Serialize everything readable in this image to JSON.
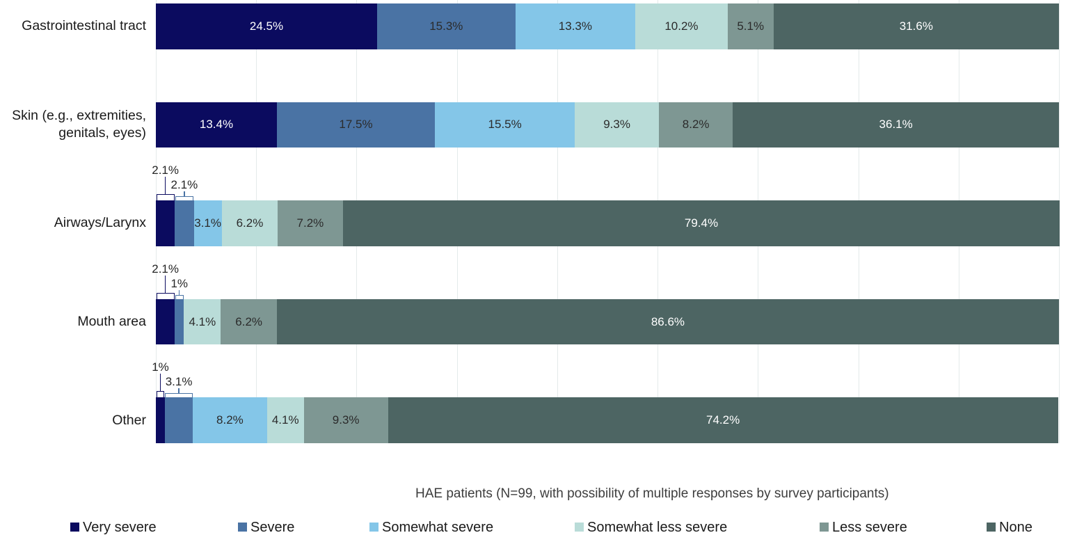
{
  "chart_data": {
    "type": "bar",
    "variant": "horizontal-stacked-100",
    "unit": "%",
    "title": "",
    "caption": "HAE patients (N=99, with possibility of multiple responses by survey participants)",
    "xlim": [
      0,
      100
    ],
    "gridline_divisions": 9,
    "grid_on": true,
    "legend_position": "bottom",
    "background_color": "#ffffff",
    "gridline_color": "#e4eaea",
    "categories": [
      {
        "label_lines": [
          "Gastrointestinal tract"
        ]
      },
      {
        "label_lines": [
          "Skin (e.g., extremities,",
          "genitals, eyes)"
        ]
      },
      {
        "label_lines": [
          "Airways/Larynx"
        ]
      },
      {
        "label_lines": [
          "Mouth area"
        ]
      },
      {
        "label_lines": [
          "Other"
        ]
      }
    ],
    "series": [
      {
        "name": "Very severe",
        "color": "#0b0b5f",
        "text_color": "#ffffff",
        "values": [
          24.5,
          13.4,
          2.1,
          2.1,
          1.0
        ]
      },
      {
        "name": "Severe",
        "color": "#4a73a4",
        "text_color": "#2b2b2b",
        "values": [
          15.3,
          17.5,
          2.1,
          1.0,
          3.1
        ]
      },
      {
        "name": "Somewhat severe",
        "color": "#84c6e8",
        "text_color": "#2b2b2b",
        "values": [
          13.3,
          15.5,
          3.1,
          0,
          8.2
        ]
      },
      {
        "name": "Somewhat less severe",
        "color": "#b9dcd8",
        "text_color": "#2b2b2b",
        "values": [
          10.2,
          9.3,
          6.2,
          4.1,
          4.1
        ]
      },
      {
        "name": "Less severe",
        "color": "#7e9793",
        "text_color": "#2b2b2b",
        "values": [
          5.1,
          8.2,
          7.2,
          6.2,
          9.3
        ]
      },
      {
        "name": "None",
        "color": "#4d6563",
        "text_color": "#ffffff",
        "values": [
          31.6,
          36.1,
          79.4,
          86.6,
          74.2
        ]
      }
    ],
    "value_labels": {
      "suffix": "%",
      "callout_rows": [
        2,
        3,
        4
      ],
      "callout_series": [
        0,
        1
      ]
    }
  }
}
